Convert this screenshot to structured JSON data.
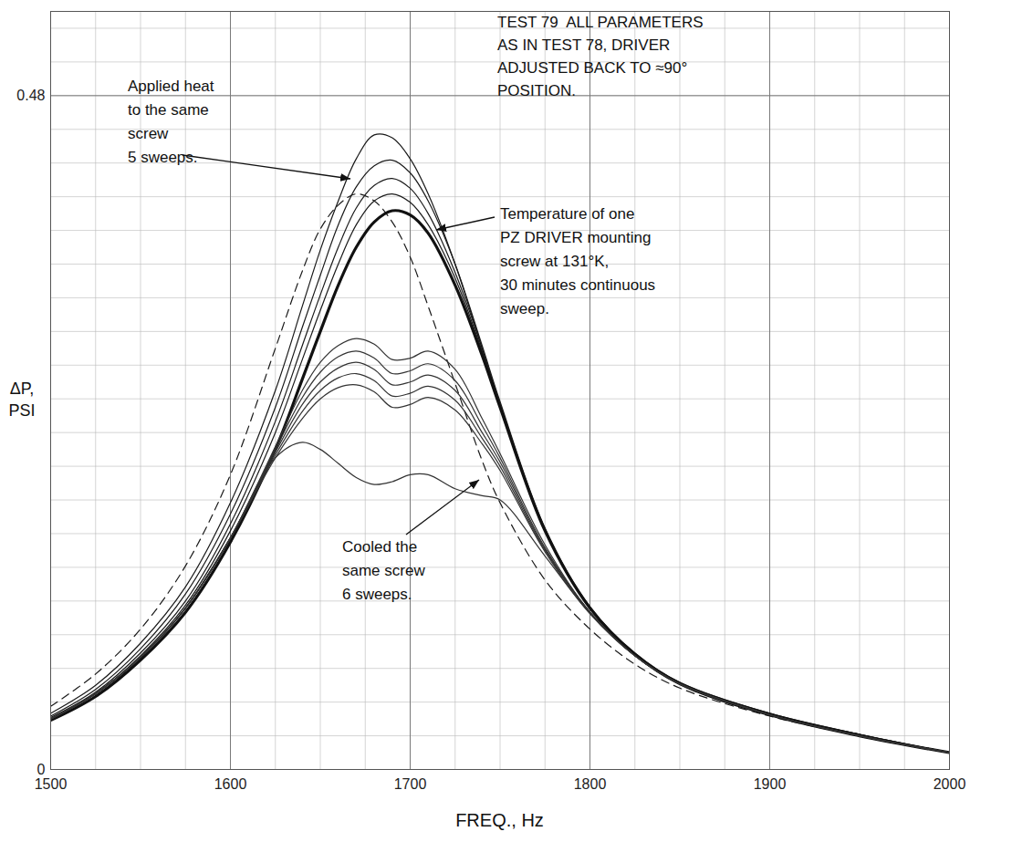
{
  "chart_data": {
    "type": "line",
    "title": "TEST 79  ALL PARAMETERS\nAS IN TEST 78, DRIVER\nADJUSTED BACK TO ≈90°\nPOSITION.",
    "x_label": "FREQ., Hz",
    "y_label": "ΔP,\nPSI",
    "xlim": [
      1500,
      2000
    ],
    "xticks": [
      1500,
      1600,
      1700,
      1800,
      1900,
      2000
    ],
    "ylim": [
      0,
      0.54
    ],
    "yticks": [
      0,
      0.48
    ],
    "grid": true,
    "tick_labels": true,
    "x": [
      1500,
      1525,
      1550,
      1575,
      1600,
      1625,
      1640,
      1650,
      1660,
      1670,
      1680,
      1690,
      1700,
      1710,
      1725,
      1740,
      1750,
      1775,
      1800,
      1825,
      1850,
      1900,
      1950,
      2000
    ],
    "series": [
      {
        "color": "#1a1a1a",
        "line_style": "solid",
        "values": [
          0.04,
          0.06,
          0.09,
          0.13,
          0.19,
          0.27,
          0.33,
          0.37,
          0.405,
          0.435,
          0.452,
          0.45,
          0.435,
          0.41,
          0.36,
          0.3,
          0.26,
          0.17,
          0.115,
          0.082,
          0.062,
          0.04,
          0.025,
          0.012
        ]
      },
      {
        "color": "#1a1a1a",
        "line_style": "solid",
        "values": [
          0.038,
          0.057,
          0.086,
          0.125,
          0.182,
          0.258,
          0.315,
          0.352,
          0.388,
          0.415,
          0.43,
          0.434,
          0.425,
          0.405,
          0.36,
          0.302,
          0.262,
          0.172,
          0.116,
          0.083,
          0.062,
          0.04,
          0.025,
          0.012
        ]
      },
      {
        "color": "#1a1a1a",
        "line_style": "solid",
        "values": [
          0.037,
          0.055,
          0.083,
          0.12,
          0.175,
          0.248,
          0.302,
          0.338,
          0.372,
          0.4,
          0.416,
          0.421,
          0.414,
          0.396,
          0.354,
          0.3,
          0.26,
          0.171,
          0.115,
          0.082,
          0.061,
          0.039,
          0.025,
          0.012
        ]
      },
      {
        "color": "#1a1a1a",
        "line_style": "solid",
        "values": [
          0.036,
          0.054,
          0.081,
          0.117,
          0.17,
          0.24,
          0.292,
          0.327,
          0.36,
          0.388,
          0.405,
          0.41,
          0.404,
          0.388,
          0.35,
          0.298,
          0.259,
          0.17,
          0.115,
          0.082,
          0.061,
          0.039,
          0.024,
          0.012
        ]
      },
      {
        "color": "#1a1a1a",
        "line_style": "dashed",
        "values": [
          0.045,
          0.068,
          0.1,
          0.145,
          0.21,
          0.3,
          0.355,
          0.385,
          0.402,
          0.41,
          0.405,
          0.39,
          0.365,
          0.33,
          0.275,
          0.22,
          0.19,
          0.135,
          0.1,
          0.075,
          0.058,
          0.038,
          0.024,
          0.012
        ]
      },
      {
        "color": "#111111",
        "line_style": "thick",
        "values": [
          0.035,
          0.052,
          0.078,
          0.112,
          0.162,
          0.228,
          0.278,
          0.312,
          0.345,
          0.372,
          0.39,
          0.398,
          0.395,
          0.382,
          0.345,
          0.295,
          0.258,
          0.17,
          0.115,
          0.082,
          0.061,
          0.039,
          0.024,
          0.012
        ]
      },
      {
        "color": "#333333",
        "line_style": "solid",
        "values": [
          0.036,
          0.054,
          0.08,
          0.115,
          0.165,
          0.23,
          0.27,
          0.29,
          0.302,
          0.307,
          0.303,
          0.292,
          0.293,
          0.298,
          0.285,
          0.25,
          0.225,
          0.16,
          0.112,
          0.081,
          0.061,
          0.039,
          0.024,
          0.012
        ]
      },
      {
        "color": "#333333",
        "line_style": "solid",
        "values": [
          0.036,
          0.054,
          0.08,
          0.115,
          0.165,
          0.228,
          0.265,
          0.283,
          0.294,
          0.298,
          0.293,
          0.282,
          0.284,
          0.289,
          0.277,
          0.245,
          0.222,
          0.158,
          0.112,
          0.081,
          0.061,
          0.039,
          0.024,
          0.012
        ]
      },
      {
        "color": "#333333",
        "line_style": "solid",
        "values": [
          0.036,
          0.054,
          0.08,
          0.115,
          0.165,
          0.226,
          0.26,
          0.276,
          0.286,
          0.29,
          0.285,
          0.274,
          0.276,
          0.281,
          0.27,
          0.24,
          0.219,
          0.157,
          0.112,
          0.081,
          0.061,
          0.039,
          0.024,
          0.012
        ]
      },
      {
        "color": "#333333",
        "line_style": "solid",
        "values": [
          0.036,
          0.054,
          0.08,
          0.115,
          0.165,
          0.224,
          0.255,
          0.27,
          0.279,
          0.282,
          0.277,
          0.266,
          0.268,
          0.273,
          0.263,
          0.236,
          0.216,
          0.156,
          0.112,
          0.081,
          0.061,
          0.039,
          0.024,
          0.012
        ]
      },
      {
        "color": "#333333",
        "line_style": "solid",
        "values": [
          0.036,
          0.054,
          0.08,
          0.115,
          0.165,
          0.222,
          0.25,
          0.264,
          0.272,
          0.274,
          0.269,
          0.258,
          0.26,
          0.265,
          0.256,
          0.232,
          0.213,
          0.155,
          0.111,
          0.081,
          0.061,
          0.039,
          0.024,
          0.012
        ]
      },
      {
        "color": "#333333",
        "line_style": "solid",
        "values": [
          0.036,
          0.054,
          0.08,
          0.115,
          0.165,
          0.222,
          0.233,
          0.228,
          0.218,
          0.208,
          0.203,
          0.205,
          0.21,
          0.21,
          0.2,
          0.195,
          0.192,
          0.152,
          0.111,
          0.081,
          0.061,
          0.039,
          0.024,
          0.012
        ]
      }
    ],
    "annotations": [
      "Applied heat\nto the same\nscrew\n5 sweeps.",
      "Temperature of one\nPZ DRIVER mounting\nscrew at 131°K,\n30 minutes continuous\nsweep.",
      "Cooled the\nsame screw\n6 sweeps."
    ]
  }
}
